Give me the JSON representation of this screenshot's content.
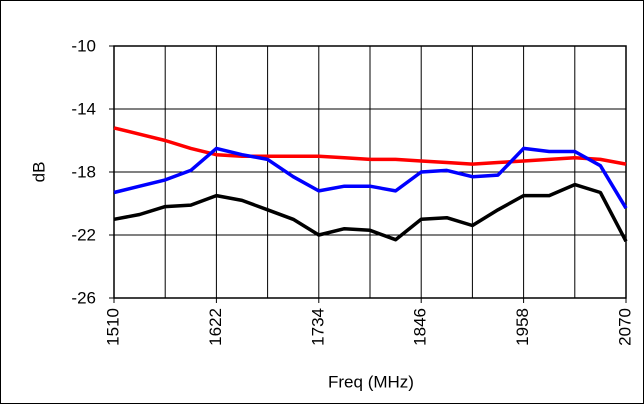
{
  "chart_data": {
    "type": "line",
    "xlabel": "Freq (MHz)",
    "ylabel": "dB",
    "x": [
      1510,
      1538,
      1566,
      1594,
      1622,
      1650,
      1678,
      1706,
      1734,
      1762,
      1790,
      1818,
      1846,
      1874,
      1902,
      1930,
      1958,
      1986,
      2014,
      2042,
      2070
    ],
    "series": [
      {
        "color": "#ff0000",
        "values": [
          -15.2,
          -15.6,
          -16.0,
          -16.5,
          -16.9,
          -17.0,
          -17.0,
          -17.0,
          -17.0,
          -17.1,
          -17.2,
          -17.2,
          -17.3,
          -17.4,
          -17.5,
          -17.4,
          -17.3,
          -17.2,
          -17.1,
          -17.2,
          -17.5
        ]
      },
      {
        "color": "#0000ff",
        "values": [
          -19.3,
          -18.9,
          -18.5,
          -17.9,
          -16.5,
          -16.9,
          -17.2,
          -18.3,
          -19.2,
          -18.9,
          -18.9,
          -19.2,
          -18.0,
          -17.9,
          -18.3,
          -18.2,
          -16.5,
          -16.7,
          -16.7,
          -17.6,
          -20.3
        ]
      },
      {
        "color": "#000000",
        "values": [
          -21.0,
          -20.7,
          -20.2,
          -20.1,
          -19.5,
          -19.8,
          -20.4,
          -21.0,
          -22.0,
          -21.6,
          -21.7,
          -22.3,
          -21.0,
          -20.9,
          -21.4,
          -20.4,
          -19.5,
          -19.5,
          -18.8,
          -19.3,
          -22.4
        ]
      }
    ],
    "xlim": [
      1510,
      2070
    ],
    "xticks": [
      1510,
      1622,
      1734,
      1846,
      1958,
      2070
    ],
    "xgrid": [
      1510,
      1566,
      1622,
      1678,
      1734,
      1790,
      1846,
      1902,
      1958,
      2014,
      2070
    ],
    "ylim": [
      -26,
      -10
    ],
    "yticks": [
      -26,
      -22,
      -18,
      -14,
      -10
    ],
    "grid": true
  }
}
